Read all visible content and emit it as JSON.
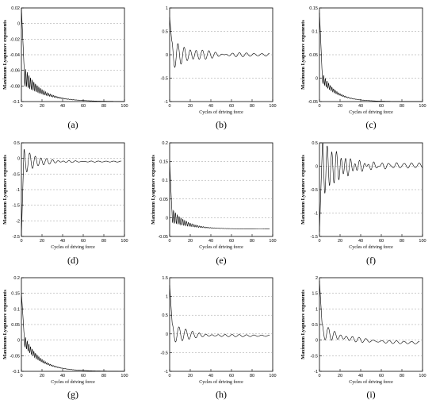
{
  "caption_labels": [
    "(a)",
    "(b)",
    "(c)",
    "(d)",
    "(e)",
    "(f)",
    "(g)",
    "(h)",
    "(i)"
  ],
  "style": {
    "line_color": "#000000",
    "grid_color": "#9a9a9a",
    "background": "#ffffff"
  },
  "chart_data": [
    {
      "type": "line",
      "label": "(a)",
      "xlabel": "",
      "ylabel": "Maximum Lyapunov exponents",
      "xlim": [
        0,
        100
      ],
      "ylim": [
        -0.1,
        0.02
      ],
      "grid": true,
      "xticks": [
        0,
        20,
        40,
        60,
        80,
        100
      ],
      "yticks": [
        0.02,
        0,
        -0.02,
        -0.04,
        -0.06,
        -0.08,
        -0.1
      ],
      "ytick_labels": [
        "0.02",
        "0",
        "-0.02",
        "-0.04",
        "-0.06",
        "-0.08",
        "-0.1"
      ],
      "series": [
        {
          "model": "damped",
          "x_end": 100,
          "start": 0.02,
          "base_start": -0.062,
          "base_end": -0.1,
          "base_tau": 18,
          "osc_amp": 0.013,
          "osc_tau": 12,
          "period": 1.6,
          "spike_len": 2.5
        }
      ]
    },
    {
      "type": "line",
      "label": "(b)",
      "xlabel": "Cycles of driving force",
      "ylabel": "",
      "xlim": [
        0,
        100
      ],
      "ylim": [
        -1,
        1
      ],
      "grid": true,
      "xticks": [
        0,
        20,
        40,
        60,
        80,
        100
      ],
      "yticks": [
        1,
        0.5,
        0,
        -0.5,
        -1
      ],
      "ytick_labels": [
        "1",
        "0.5",
        "0",
        "-0.5",
        "-1"
      ],
      "series": [
        {
          "model": "damped",
          "x_end": 97,
          "start": 0.8,
          "base_start": 0,
          "base_end": 0,
          "base_tau": 10,
          "osc_amp": 0.3,
          "osc_tau": 22,
          "period": 6,
          "spike_len": 2,
          "residual_amp": 0.03
        }
      ]
    },
    {
      "type": "line",
      "label": "(c)",
      "xlabel": "Cycles of driving force",
      "ylabel": "Maximum Lyapunov exponents",
      "xlim": [
        0,
        100
      ],
      "ylim": [
        -0.05,
        0.15
      ],
      "grid": true,
      "xticks": [
        0,
        20,
        40,
        60,
        80,
        100
      ],
      "yticks": [
        0.15,
        0.1,
        0.05,
        0,
        -0.05
      ],
      "ytick_labels": [
        "0.15",
        "0.1",
        "0.05",
        "0",
        "-0.05"
      ],
      "series": [
        {
          "model": "damped",
          "x_end": 100,
          "start": 0.14,
          "base_start": 0.012,
          "base_end": -0.05,
          "base_tau": 14,
          "osc_amp": 0.012,
          "osc_tau": 10,
          "period": 1.6,
          "spike_len": 2.5
        }
      ]
    },
    {
      "type": "line",
      "label": "(d)",
      "xlabel": "Cycles of driving force",
      "ylabel": "Maximum Lyapunov exponents",
      "xlim": [
        0,
        100
      ],
      "ylim": [
        -2.5,
        0.5
      ],
      "grid": true,
      "xticks": [
        0,
        20,
        40,
        60,
        80,
        100
      ],
      "yticks": [
        0.5,
        0,
        -0.5,
        -1,
        -1.5,
        -2,
        -2.5
      ],
      "ytick_labels": [
        "0.5",
        "0",
        "-0.5",
        "-1",
        "-1.5",
        "-2",
        "-2.5"
      ],
      "series": [
        {
          "model": "damped",
          "x_end": 97,
          "start": -2.5,
          "base_start": -0.1,
          "base_end": -0.1,
          "base_tau": 10,
          "osc_amp": 0.4,
          "osc_tau": 14,
          "period": 5.5,
          "spike_len": 2.5,
          "residual_amp": 0.015
        }
      ]
    },
    {
      "type": "line",
      "label": "(e)",
      "xlabel": "Cycles of driving force",
      "ylabel": "Maximum Lyapunov exponents",
      "xlim": [
        0,
        100
      ],
      "ylim": [
        -0.05,
        0.2
      ],
      "grid": true,
      "xticks": [
        0,
        20,
        40,
        60,
        80,
        100
      ],
      "yticks": [
        0.2,
        0.15,
        0.1,
        0.05,
        0,
        -0.05
      ],
      "ytick_labels": [
        "0.2",
        "0.15",
        "0.1",
        "0.05",
        "0",
        "-0.05"
      ],
      "series": [
        {
          "model": "damped",
          "x_end": 97,
          "start": 0.15,
          "base_start": 0.012,
          "base_end": -0.03,
          "base_tau": 15,
          "osc_amp": 0.02,
          "osc_tau": 12,
          "period": 1.8,
          "spike_len": 2
        }
      ]
    },
    {
      "type": "line",
      "label": "(f)",
      "xlabel": "Cycles of driving force",
      "ylabel": "Maximum Lyapunov exponents",
      "xlim": [
        0,
        100
      ],
      "ylim": [
        -1.5,
        0.5
      ],
      "grid": true,
      "xticks": [
        0,
        20,
        40,
        60,
        80,
        100
      ],
      "yticks": [
        0.5,
        0,
        -0.5,
        -1,
        -1.5
      ],
      "ytick_labels": [
        "0.5",
        "0",
        "-0.5",
        "-1",
        "-1.5"
      ],
      "series": [
        {
          "model": "damped",
          "x_end": 100,
          "start": -1.4,
          "base_start": -0.05,
          "base_end": 0.02,
          "base_tau": 30,
          "osc_amp": 0.6,
          "osc_tau": 18,
          "period": 4.5,
          "spike_len": 3,
          "residual_amp": 0.05
        }
      ]
    },
    {
      "type": "line",
      "label": "(g)",
      "xlabel": "Cycles of driving force",
      "ylabel": "Maximum Lyapunov exponents",
      "xlim": [
        0,
        100
      ],
      "ylim": [
        -0.1,
        0.2
      ],
      "grid": true,
      "xticks": [
        0,
        20,
        40,
        60,
        80,
        100
      ],
      "yticks": [
        0.2,
        0.15,
        0.1,
        0.05,
        0,
        -0.05,
        -0.1
      ],
      "ytick_labels": [
        "0.2",
        "0.15",
        "0.1",
        "0.05",
        "0",
        "-0.05",
        "-0.1"
      ],
      "series": [
        {
          "model": "damped",
          "x_end": 100,
          "start": 0.15,
          "base_start": 0.018,
          "base_end": -0.1,
          "base_tau": 16,
          "osc_amp": 0.02,
          "osc_tau": 12,
          "period": 1.6,
          "spike_len": 2.5
        }
      ]
    },
    {
      "type": "line",
      "label": "(h)",
      "xlabel": "Cycles of driving force",
      "ylabel": "",
      "xlim": [
        0,
        100
      ],
      "ylim": [
        -1,
        1.5
      ],
      "grid": true,
      "xticks": [
        0,
        20,
        40,
        60,
        80,
        100
      ],
      "yticks": [
        1.5,
        1,
        0.5,
        0,
        -0.5,
        -1
      ],
      "ytick_labels": [
        "1.5",
        "1",
        "0.5",
        "0",
        "-0.5",
        "-1"
      ],
      "series": [
        {
          "model": "damped",
          "x_end": 97,
          "start": 1.3,
          "base_start": 0.02,
          "base_end": -0.05,
          "base_tau": 20,
          "osc_amp": 0.25,
          "osc_tau": 20,
          "period": 6.5,
          "spike_len": 2.5,
          "residual_amp": 0.02
        }
      ]
    },
    {
      "type": "line",
      "label": "(i)",
      "xlabel": "Cycles of driving force",
      "ylabel": "Maximum Lyapunov exponents",
      "xlim": [
        0,
        100
      ],
      "ylim": [
        -1,
        2
      ],
      "grid": true,
      "xticks": [
        0,
        20,
        40,
        60,
        80,
        100
      ],
      "yticks": [
        2,
        1.5,
        1,
        0.5,
        0,
        -0.5,
        -1
      ],
      "ytick_labels": [
        "2",
        "1.5",
        "1",
        "0.5",
        "0",
        "-0.5",
        "-1"
      ],
      "series": [
        {
          "model": "damped",
          "x_end": 97,
          "start": 1.9,
          "base_start": 0.3,
          "base_end": -0.1,
          "base_tau": 30,
          "osc_amp": 0.25,
          "osc_tau": 20,
          "period": 6,
          "spike_len": 2.5,
          "residual_amp": 0.04
        }
      ]
    }
  ]
}
